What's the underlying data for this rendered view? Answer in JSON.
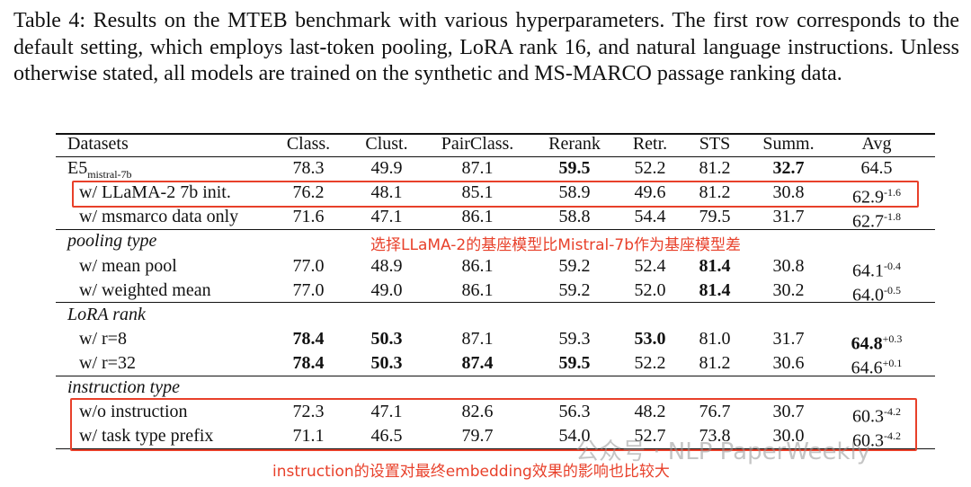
{
  "caption": "Table 4: Results on the MTEB benchmark with various hyperparameters. The first row corresponds to the default setting, which employs last-token pooling, LoRA rank 16, and natural language instructions. Unless otherwise stated, all models are trained on the synthetic and MS-MARCO passage ranking data.",
  "table": {
    "header": [
      "Datasets",
      "Class.",
      "Clust.",
      "PairClass.",
      "Rerank",
      "Retr.",
      "STS",
      "Summ.",
      "Avg"
    ],
    "sections": [
      {
        "rows": [
          {
            "label": "E5",
            "label_sub": "mistral-7b",
            "values": [
              "78.3",
              "49.9",
              "87.1",
              "59.5",
              "52.2",
              "81.2",
              "32.7",
              "64.5"
            ],
            "bold": [
              3,
              6
            ]
          },
          {
            "label": "w/ LLaMA-2 7b init.",
            "values": [
              "76.2",
              "48.1",
              "85.1",
              "58.9",
              "49.6",
              "81.2",
              "30.8",
              "62.9"
            ],
            "delta": "-1.6",
            "bold": []
          },
          {
            "label": "w/ msmarco data only",
            "values": [
              "71.6",
              "47.1",
              "86.1",
              "58.8",
              "54.4",
              "79.5",
              "31.7",
              "62.7"
            ],
            "delta": "-1.8",
            "bold": []
          }
        ]
      },
      {
        "title": "pooling type",
        "rows": [
          {
            "label": "w/ mean pool",
            "values": [
              "77.0",
              "48.9",
              "86.1",
              "59.2",
              "52.4",
              "81.4",
              "30.8",
              "64.1"
            ],
            "delta": "-0.4",
            "bold": [
              5
            ]
          },
          {
            "label": "w/ weighted mean",
            "values": [
              "77.0",
              "49.0",
              "86.1",
              "59.2",
              "52.0",
              "81.4",
              "30.2",
              "64.0"
            ],
            "delta": "-0.5",
            "bold": [
              5
            ]
          }
        ]
      },
      {
        "title": "LoRA rank",
        "rows": [
          {
            "label": "w/ r=8",
            "values": [
              "78.4",
              "50.3",
              "87.1",
              "59.3",
              "53.0",
              "81.0",
              "31.7",
              "64.8"
            ],
            "delta": "+0.3",
            "bold": [
              0,
              1,
              4,
              7
            ]
          },
          {
            "label": "w/ r=32",
            "values": [
              "78.4",
              "50.3",
              "87.4",
              "59.5",
              "52.2",
              "81.2",
              "30.6",
              "64.6"
            ],
            "delta": "+0.1",
            "bold": [
              0,
              1,
              2,
              3
            ]
          }
        ]
      },
      {
        "title": "instruction type",
        "rows": [
          {
            "label": "w/o instruction",
            "values": [
              "72.3",
              "47.1",
              "82.6",
              "56.3",
              "48.2",
              "76.7",
              "30.7",
              "60.3"
            ],
            "delta": "-4.2",
            "bold": []
          },
          {
            "label": "w/ task type prefix",
            "values": [
              "71.1",
              "46.5",
              "79.7",
              "54.0",
              "52.7",
              "73.8",
              "30.0",
              "60.3"
            ],
            "delta": "-4.2",
            "bold": []
          }
        ]
      }
    ]
  },
  "annotations": [
    "选择LLaMA-2的基座模型比Mistral-7b作为基座模型差",
    "instruction的设置对最终embedding效果的影响也比较大"
  ],
  "watermark": "公众号 · NLP PaperWeekly"
}
